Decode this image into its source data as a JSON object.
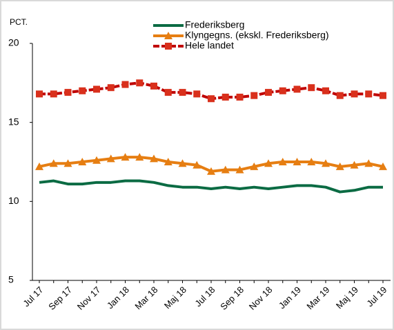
{
  "chart_data": {
    "type": "line",
    "y_label": "PCT.",
    "categories": [
      "Jul 17",
      null,
      "Sep 17",
      null,
      "Nov 17",
      null,
      "Jan 18",
      null,
      "Mar 18",
      null,
      "Maj 18",
      null,
      "Jul 18",
      null,
      "Sep 18",
      null,
      "Nov 18",
      null,
      "Jan 19",
      null,
      "Mar 19",
      null,
      "Maj 19",
      null,
      "Jul 19"
    ],
    "series": [
      {
        "name": "Frederiksberg",
        "color": "#0b6b43",
        "marker": "none",
        "values": [
          11.2,
          11.3,
          11.1,
          11.1,
          11.2,
          11.2,
          11.3,
          11.3,
          11.2,
          11.0,
          10.9,
          10.9,
          10.8,
          10.9,
          10.8,
          10.9,
          10.8,
          10.9,
          11.0,
          11.0,
          10.9,
          10.6,
          10.7,
          10.9,
          10.9
        ]
      },
      {
        "name": "Klyngegns. (ekskl. Frederiksberg)",
        "color": "#e67e12",
        "marker": "triangle",
        "values": [
          12.2,
          12.4,
          12.4,
          12.5,
          12.6,
          12.7,
          12.8,
          12.8,
          12.7,
          12.5,
          12.4,
          12.3,
          11.9,
          12.0,
          12.0,
          12.2,
          12.4,
          12.5,
          12.5,
          12.5,
          12.4,
          12.2,
          12.3,
          12.4,
          12.2
        ]
      },
      {
        "name": "Hele landet",
        "color": "#d9301c",
        "marker": "square",
        "values": [
          16.8,
          16.8,
          16.9,
          17.0,
          17.1,
          17.2,
          17.4,
          17.5,
          17.3,
          16.9,
          16.9,
          16.8,
          16.5,
          16.6,
          16.6,
          16.7,
          16.9,
          17.0,
          17.1,
          17.2,
          17.0,
          16.7,
          16.8,
          16.8,
          16.7
        ]
      }
    ],
    "ylim": [
      5,
      20
    ],
    "yticks": [
      5,
      10,
      15,
      20
    ],
    "grid": false
  }
}
